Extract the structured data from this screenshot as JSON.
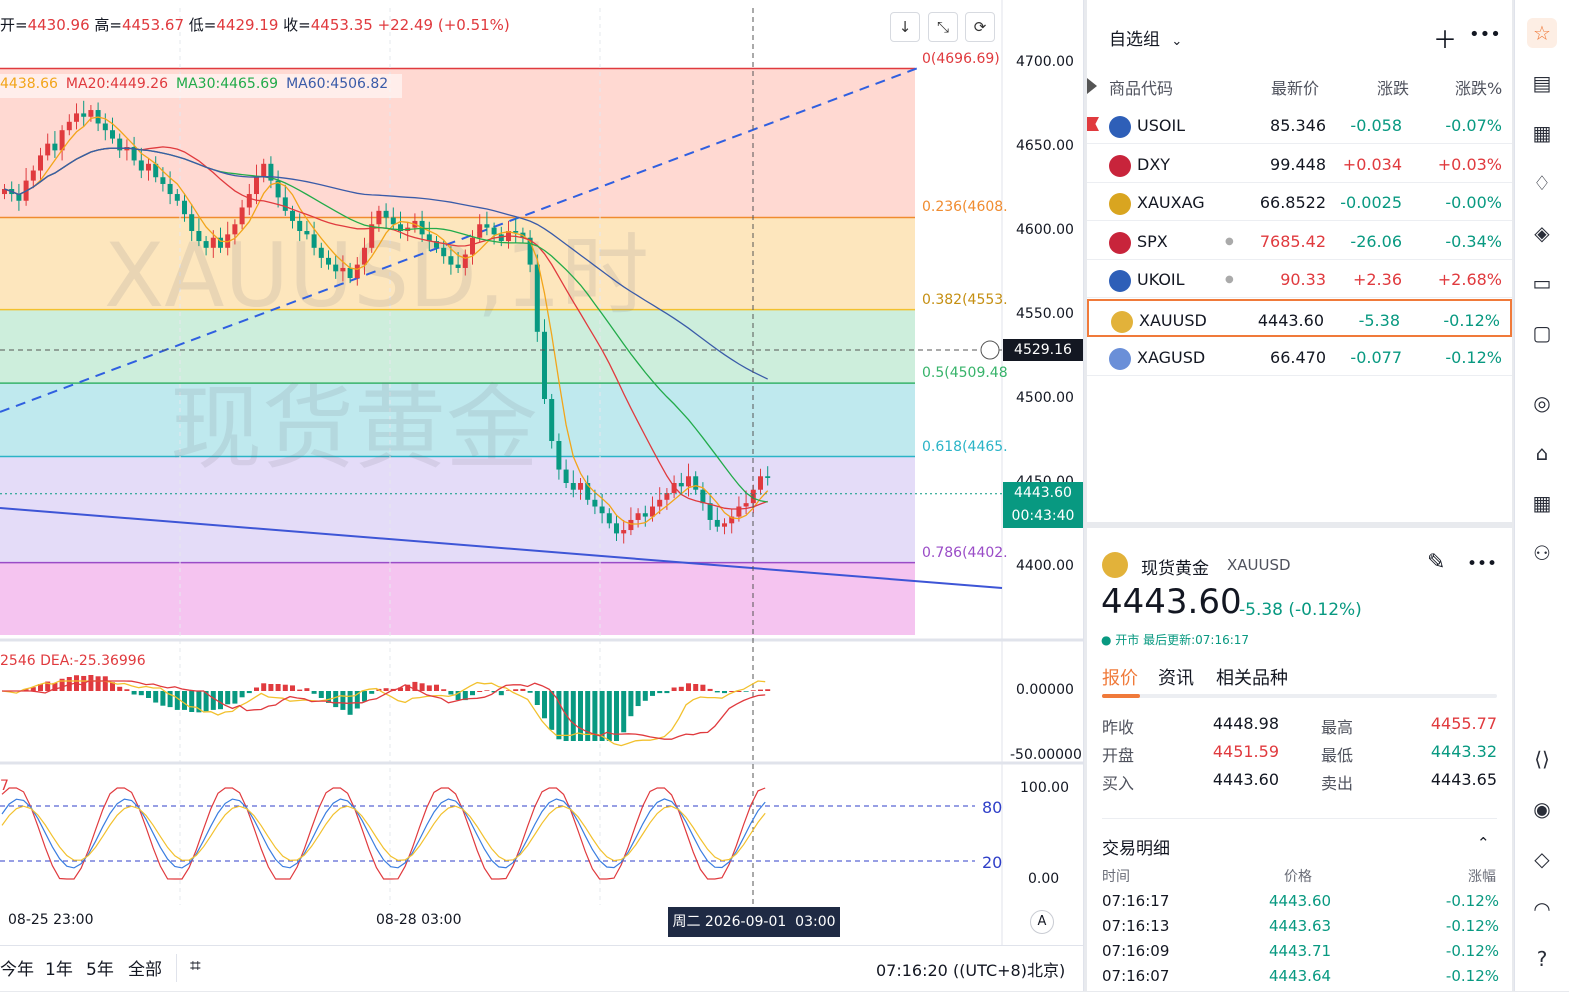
{
  "chart": {
    "ohlc": {
      "open_label": "开=",
      "open": "4430.96",
      "high_label": "高=",
      "high": "4453.67",
      "low_label": "低=",
      "low": "4429.19",
      "close_label": "收=",
      "close": "4453.35",
      "change": "+22.49 (+0.51%)"
    },
    "ma_legend": [
      {
        "text": "4438.66",
        "color": "#f2a51a"
      },
      {
        "text": "MA20:4449.26",
        "color": "#e03a3e"
      },
      {
        "text": "MA30:4465.69",
        "color": "#22ab4a"
      },
      {
        "text": "MA60:4506.82",
        "color": "#3a5ba8"
      }
    ],
    "watermark_symbol": "XAUUSD,1时",
    "watermark_name": "现货黄金",
    "price_axis": [
      "4700.00",
      "4650.00",
      "4600.00",
      "4550.00",
      "4500.00",
      "4450.00",
      "4400.00"
    ],
    "crosshair_price": "4529.16",
    "last_price": "4443.60",
    "countdown": "00:43:40",
    "fib_levels": [
      {
        "label": "0(4696.69)",
        "price": 4696.69,
        "line": "#e03a3e",
        "fill": "#ffd9d2"
      },
      {
        "label": "0.236(4608.",
        "price": 4608.04,
        "line": "#f08c30",
        "fill": "#fde6bd"
      },
      {
        "label": "0.382(4553.",
        "price": 4553.2,
        "line": "#f2c12e",
        "fill": "#cdeedc"
      },
      {
        "label": "0.5(4509.48",
        "price": 4509.48,
        "line": "#37b36a",
        "fill": "#bfe9ee"
      },
      {
        "label": "0.618(4465.",
        "price": 4465.76,
        "line": "#2bb4c7",
        "fill": "#e4dcf8"
      },
      {
        "label": "0.786(4402.",
        "price": 4402.58,
        "line": "#9a4cc7",
        "fill": "#f5c4f0"
      }
    ],
    "macd_legend_prefix": "2546",
    "macd_legend": "DEA:-25.36996",
    "macd_axis": [
      "0.00000",
      "-50.00000"
    ],
    "kdj_prefix": "7",
    "kdj_axis": [
      "100.00",
      "0.00"
    ],
    "kdj_levels": [
      "80",
      "20"
    ],
    "x_axis": [
      "08-25 23:00",
      "08-28 03:00"
    ],
    "crosshair_time": "周二 2026-09-01  03:00",
    "a_button": "A",
    "ranges": [
      "今年",
      "1年",
      "5年",
      "全部"
    ],
    "clock": "07:16:20 ((UTC+8)北京)"
  },
  "watchlist": {
    "title": "自选组",
    "columns": [
      "商品代码",
      "最新价",
      "涨跌",
      "涨跌%"
    ],
    "rows": [
      {
        "symbol": "USOIL",
        "price": "85.346",
        "change": "-0.058",
        "pct": "-0.07%",
        "dir": "neg",
        "icon_color": "#2e5fb8",
        "icon": "oil-icon",
        "flag": true
      },
      {
        "symbol": "DXY",
        "price": "99.448",
        "change": "+0.034",
        "pct": "+0.03%",
        "dir": "pos",
        "icon_color": "#c8243b",
        "icon": "us-flag-icon"
      },
      {
        "symbol": "XAUXAG",
        "price": "66.8522",
        "change": "-0.0025",
        "pct": "-0.00%",
        "dir": "neg",
        "icon_color": "#d9a520",
        "icon": "gold-silver-icon"
      },
      {
        "symbol": "SPX",
        "price": "7685.42",
        "change": "-26.06",
        "pct": "-0.34%",
        "dir": "neg",
        "icon_color": "#c8243b",
        "icon": "us-flag-icon",
        "dot": true,
        "price_dir": "pos"
      },
      {
        "symbol": "UKOIL",
        "price": "90.33",
        "change": "+2.36",
        "pct": "+2.68%",
        "dir": "pos",
        "icon_color": "#2e5fb8",
        "icon": "oil-icon",
        "dot": true,
        "price_dir": "pos"
      },
      {
        "symbol": "XAUUSD",
        "price": "4443.60",
        "change": "-5.38",
        "pct": "-0.12%",
        "dir": "neg",
        "icon_color": "#e2b23a",
        "icon": "gold-icon",
        "selected": true
      },
      {
        "symbol": "XAGUSD",
        "price": "66.470",
        "change": "-0.077",
        "pct": "-0.12%",
        "dir": "neg",
        "icon_color": "#6a8fd8",
        "icon": "silver-icon"
      }
    ]
  },
  "detail": {
    "name": "现货黄金",
    "symbol": "XAUUSD",
    "price": "4443.60",
    "change": "-5.38 (-0.12%)",
    "status": "● 开市 最后更新:07:16:17",
    "tabs": [
      "报价",
      "资讯",
      "相关品种"
    ],
    "quote": [
      {
        "label": "昨收",
        "value": "4448.98",
        "label2": "最高",
        "value2": "4455.77"
      },
      {
        "label": "开盘",
        "value": "4451.59",
        "label2": "最低",
        "value2": "4443.32"
      },
      {
        "label": "买入",
        "value": "4443.60",
        "label2": "卖出",
        "value2": "4443.65"
      }
    ],
    "trades_title": "交易明细",
    "trades_columns": [
      "时间",
      "价格",
      "涨幅"
    ],
    "trades": [
      {
        "time": "07:16:17",
        "price": "4443.60",
        "pct": "-0.12%"
      },
      {
        "time": "07:16:13",
        "price": "4443.63",
        "pct": "-0.12%"
      },
      {
        "time": "07:16:09",
        "price": "4443.71",
        "pct": "-0.12%"
      },
      {
        "time": "07:16:07",
        "price": "4443.64",
        "pct": "-0.12%"
      }
    ]
  },
  "sidebar_icons": [
    "watchlist-icon",
    "news-icon",
    "calendar-icon",
    "alert-icon",
    "layers-icon",
    "video-icon",
    "chat-icon",
    "target-icon",
    "learn-icon",
    "table-icon",
    "flow-icon",
    "dom-icon",
    "ideas-icon",
    "signal-icon",
    "headset-icon",
    "help-icon"
  ],
  "colors": {
    "up": "#e03a3e",
    "down": "#089981",
    "accent": "#f07a3a"
  }
}
